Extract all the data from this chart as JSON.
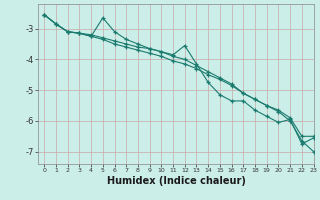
{
  "xlabel": "Humidex (Indice chaleur)",
  "bg_color": "#cceee8",
  "line_color": "#1a7a6e",
  "grid_color_major": "#d4a0a0",
  "xlim": [
    -0.5,
    23
  ],
  "ylim": [
    -7.4,
    -2.2
  ],
  "x_ticks": [
    0,
    1,
    2,
    3,
    4,
    5,
    6,
    7,
    8,
    9,
    10,
    11,
    12,
    13,
    14,
    15,
    16,
    17,
    18,
    19,
    20,
    21,
    22,
    23
  ],
  "y_ticks": [
    -7,
    -6,
    -5,
    -4,
    -3
  ],
  "line1_x": [
    0,
    1,
    2,
    3,
    4,
    5,
    6,
    7,
    8,
    9,
    10,
    11,
    12,
    13,
    14,
    15,
    16,
    17,
    18,
    19,
    20,
    21,
    22,
    23
  ],
  "line1_y": [
    -2.55,
    -2.85,
    -3.1,
    -3.15,
    -3.25,
    -2.65,
    -3.1,
    -3.35,
    -3.5,
    -3.65,
    -3.75,
    -3.85,
    -3.55,
    -4.15,
    -4.75,
    -5.15,
    -5.35,
    -5.35,
    -5.65,
    -5.85,
    -6.05,
    -5.95,
    -6.75,
    -6.55
  ],
  "line2_x": [
    0,
    1,
    2,
    3,
    4,
    5,
    6,
    7,
    8,
    9,
    10,
    11,
    12,
    13,
    14,
    15,
    16,
    17,
    18,
    19,
    20,
    21,
    22,
    23
  ],
  "line2_y": [
    -2.55,
    -2.85,
    -3.1,
    -3.15,
    -3.2,
    -3.3,
    -3.4,
    -3.5,
    -3.6,
    -3.65,
    -3.75,
    -3.9,
    -4.0,
    -4.2,
    -4.4,
    -4.6,
    -4.8,
    -5.1,
    -5.3,
    -5.5,
    -5.65,
    -5.9,
    -6.5,
    -6.5
  ],
  "line3_x": [
    0,
    1,
    2,
    3,
    4,
    5,
    6,
    7,
    8,
    9,
    10,
    11,
    12,
    13,
    14,
    15,
    16,
    17,
    18,
    19,
    20,
    21,
    22,
    23
  ],
  "line3_y": [
    -2.55,
    -2.85,
    -3.1,
    -3.15,
    -3.25,
    -3.35,
    -3.5,
    -3.6,
    -3.7,
    -3.8,
    -3.9,
    -4.05,
    -4.15,
    -4.3,
    -4.5,
    -4.65,
    -4.85,
    -5.1,
    -5.3,
    -5.5,
    -5.7,
    -6.0,
    -6.65,
    -7.0
  ]
}
